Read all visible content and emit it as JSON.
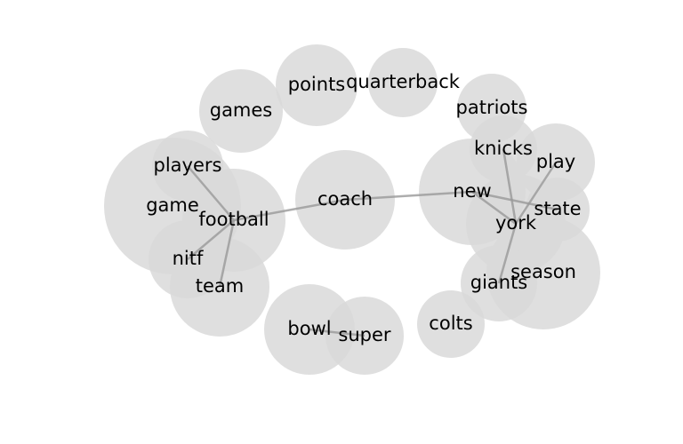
{
  "graph": {
    "nodes": [
      {
        "id": "games",
        "label": "games"
      },
      {
        "id": "points",
        "label": "points"
      },
      {
        "id": "quarterback",
        "label": "quarterback"
      },
      {
        "id": "patriots",
        "label": "patriots"
      },
      {
        "id": "knicks",
        "label": "knicks"
      },
      {
        "id": "play",
        "label": "play"
      },
      {
        "id": "players",
        "label": "players"
      },
      {
        "id": "game",
        "label": "game"
      },
      {
        "id": "football",
        "label": "football"
      },
      {
        "id": "coach",
        "label": "coach"
      },
      {
        "id": "new",
        "label": "new"
      },
      {
        "id": "state",
        "label": "state"
      },
      {
        "id": "york",
        "label": "york"
      },
      {
        "id": "nitf",
        "label": "nitf"
      },
      {
        "id": "team",
        "label": "team"
      },
      {
        "id": "season",
        "label": "season"
      },
      {
        "id": "giants",
        "label": "giants"
      },
      {
        "id": "bowl",
        "label": "bowl"
      },
      {
        "id": "super",
        "label": "super"
      },
      {
        "id": "colts",
        "label": "colts"
      }
    ],
    "edges": [
      {
        "source": "football",
        "target": "coach"
      },
      {
        "source": "coach",
        "target": "new"
      },
      {
        "source": "players",
        "target": "football"
      },
      {
        "source": "football",
        "target": "team"
      },
      {
        "source": "football",
        "target": "nitf"
      },
      {
        "source": "new",
        "target": "york"
      },
      {
        "source": "new",
        "target": "state"
      },
      {
        "source": "york",
        "target": "knicks"
      },
      {
        "source": "york",
        "target": "play"
      },
      {
        "source": "york",
        "target": "giants"
      },
      {
        "source": "bowl",
        "target": "super"
      }
    ]
  }
}
